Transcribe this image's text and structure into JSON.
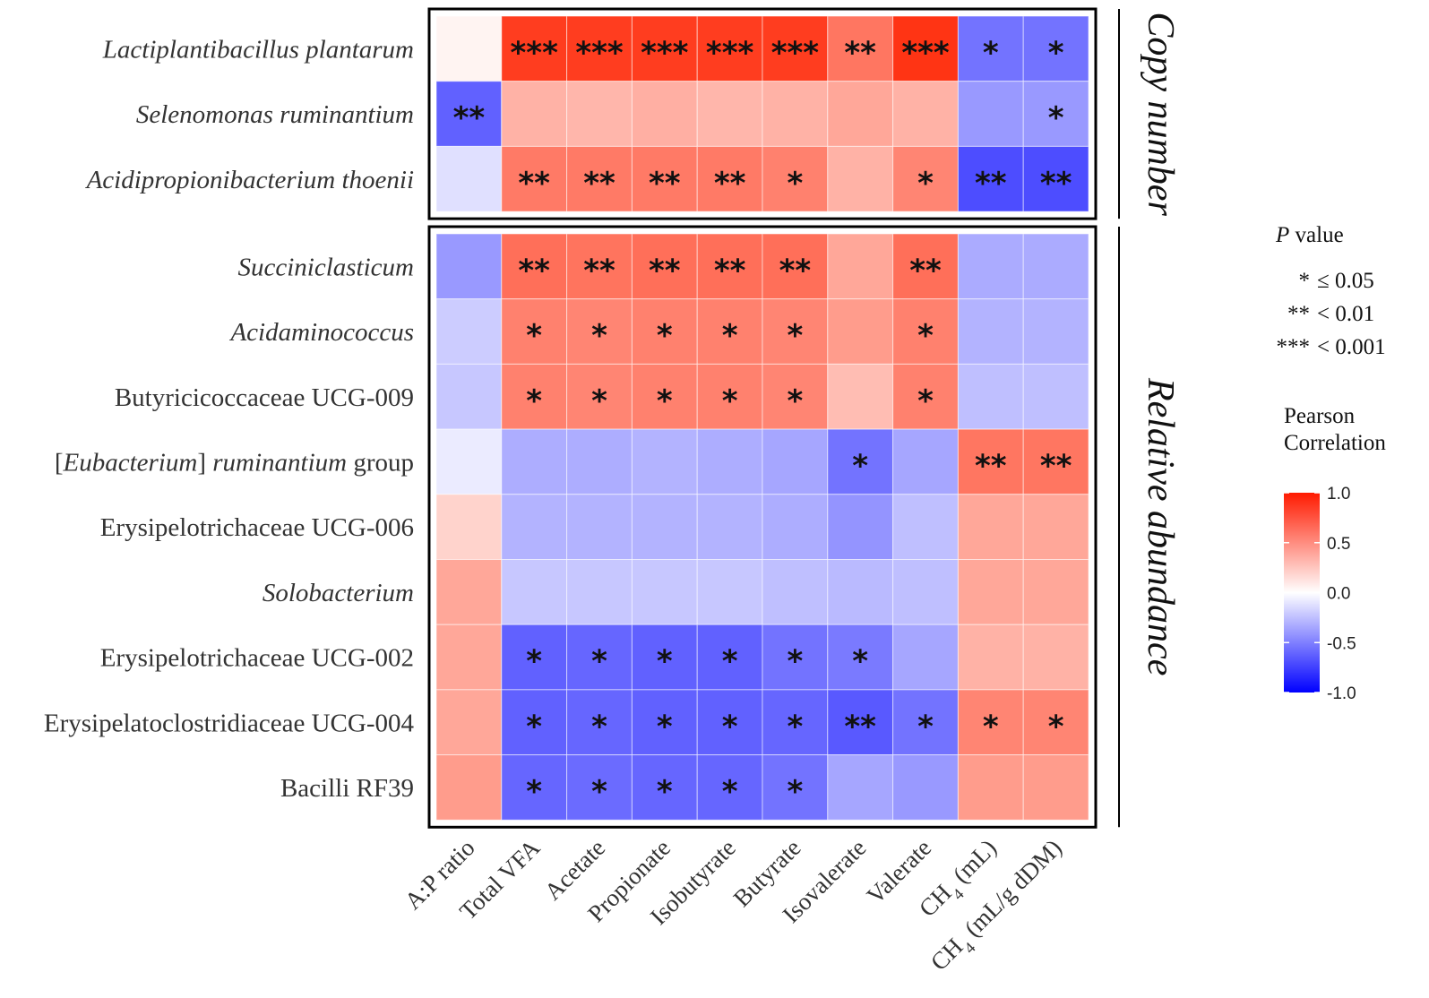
{
  "chart_data": {
    "type": "heatmap",
    "columns": [
      "A:P ratio",
      "Total VFA",
      "Acetate",
      "Propionate",
      "Isobutyrate",
      "Butyrate",
      "Isovalerate",
      "Valerate",
      "CH4 (mL)",
      "CH4 (mL/g dDM)"
    ],
    "column_labels_display": [
      {
        "main": "A:P ratio"
      },
      {
        "main": "Total VFA"
      },
      {
        "main": "Acetate"
      },
      {
        "main": "Propionate"
      },
      {
        "main": "Isobutyrate"
      },
      {
        "main": "Butyrate"
      },
      {
        "main": "Isovalerate"
      },
      {
        "main": "Valerate"
      },
      {
        "pre": "CH",
        "sub": "4",
        "post": " (mL)"
      },
      {
        "pre": "CH",
        "sub": "4",
        "post": " (mL/g dDM)"
      }
    ],
    "groups": [
      {
        "name": "Copy number",
        "rows": [
          {
            "label": [
              {
                "t": "Lactiplantibacillus plantarum",
                "i": true
              }
            ],
            "values": [
              0.05,
              0.88,
              0.88,
              0.88,
              0.88,
              0.88,
              0.62,
              0.92,
              -0.55,
              -0.55
            ],
            "sig": [
              "",
              "***",
              "***",
              "***",
              "***",
              "***",
              "**",
              "***",
              "*",
              "*"
            ]
          },
          {
            "label": [
              {
                "t": "Selenomonas ruminantium",
                "i": true
              }
            ],
            "values": [
              -0.62,
              0.35,
              0.33,
              0.36,
              0.33,
              0.35,
              0.4,
              0.35,
              -0.4,
              -0.4
            ],
            "sig": [
              "**",
              "",
              "",
              "",
              "",
              "",
              "",
              "",
              "",
              "*"
            ]
          },
          {
            "label": [
              {
                "t": "Acidipropionibacterium thoenii",
                "i": true
              }
            ],
            "values": [
              -0.12,
              0.6,
              0.6,
              0.6,
              0.6,
              0.57,
              0.35,
              0.55,
              -0.7,
              -0.7
            ],
            "sig": [
              "",
              "**",
              "**",
              "**",
              "**",
              "*",
              "",
              "*",
              "**",
              "**"
            ]
          }
        ]
      },
      {
        "name": "Relative abundance",
        "rows": [
          {
            "label": [
              {
                "t": "Succiniclasticum",
                "i": true
              }
            ],
            "values": [
              -0.4,
              0.65,
              0.63,
              0.65,
              0.65,
              0.65,
              0.4,
              0.65,
              -0.33,
              -0.33
            ],
            "sig": [
              "",
              "**",
              "**",
              "**",
              "**",
              "**",
              "",
              "**",
              "",
              ""
            ]
          },
          {
            "label": [
              {
                "t": "Acidaminococcus",
                "i": true
              }
            ],
            "values": [
              -0.2,
              0.57,
              0.55,
              0.57,
              0.57,
              0.55,
              0.45,
              0.57,
              -0.3,
              -0.3
            ],
            "sig": [
              "",
              "*",
              "*",
              "*",
              "*",
              "*",
              "",
              "*",
              "",
              ""
            ]
          },
          {
            "label": [
              {
                "t": "Butyricicoccaceae UCG-009",
                "i": false
              }
            ],
            "values": [
              -0.22,
              0.57,
              0.55,
              0.57,
              0.57,
              0.55,
              0.3,
              0.57,
              -0.25,
              -0.25
            ],
            "sig": [
              "",
              "*",
              "*",
              "*",
              "*",
              "*",
              "",
              "*",
              "",
              ""
            ]
          },
          {
            "label": [
              {
                "t": "[",
                "i": false
              },
              {
                "t": "Eubacterium",
                "i": true
              },
              {
                "t": "] ",
                "i": false
              },
              {
                "t": "ruminantium",
                "i": true
              },
              {
                "t": " group",
                "i": false
              }
            ],
            "values": [
              -0.08,
              -0.32,
              -0.32,
              -0.3,
              -0.32,
              -0.35,
              -0.55,
              -0.35,
              0.62,
              0.62
            ],
            "sig": [
              "",
              "",
              "",
              "",
              "",
              "",
              "*",
              "",
              "**",
              "**"
            ]
          },
          {
            "label": [
              {
                "t": "Erysipelotrichaceae UCG-006",
                "i": false
              }
            ],
            "values": [
              0.2,
              -0.3,
              -0.3,
              -0.3,
              -0.3,
              -0.32,
              -0.42,
              -0.25,
              0.4,
              0.4
            ],
            "sig": [
              "",
              "",
              "",
              "",
              "",
              "",
              "",
              "",
              "",
              ""
            ]
          },
          {
            "label": [
              {
                "t": "Solobacterium",
                "i": true
              }
            ],
            "values": [
              0.4,
              -0.22,
              -0.22,
              -0.22,
              -0.22,
              -0.25,
              -0.27,
              -0.25,
              0.4,
              0.4
            ],
            "sig": [
              "",
              "",
              "",
              "",
              "",
              "",
              "",
              "",
              "",
              ""
            ]
          },
          {
            "label": [
              {
                "t": "Erysipelotrichaceae UCG-002",
                "i": false
              }
            ],
            "values": [
              0.4,
              -0.62,
              -0.6,
              -0.62,
              -0.62,
              -0.55,
              -0.52,
              -0.35,
              0.35,
              0.35
            ],
            "sig": [
              "",
              "*",
              "*",
              "*",
              "*",
              "*",
              "*",
              "",
              "",
              ""
            ]
          },
          {
            "label": [
              {
                "t": "Erysipelatoclostridiaceae UCG-004",
                "i": false
              }
            ],
            "values": [
              0.4,
              -0.62,
              -0.6,
              -0.62,
              -0.62,
              -0.6,
              -0.65,
              -0.55,
              0.55,
              0.55
            ],
            "sig": [
              "",
              "*",
              "*",
              "*",
              "*",
              "*",
              "**",
              "*",
              "*",
              "*"
            ]
          },
          {
            "label": [
              {
                "t": "Bacilli RF39",
                "i": false
              }
            ],
            "values": [
              0.45,
              -0.6,
              -0.58,
              -0.6,
              -0.6,
              -0.55,
              -0.35,
              -0.4,
              0.45,
              0.45
            ],
            "sig": [
              "",
              "*",
              "*",
              "*",
              "*",
              "*",
              "",
              "",
              "",
              ""
            ]
          }
        ]
      }
    ],
    "legend": {
      "pvalue_title": {
        "italic": "P",
        "rest": " value"
      },
      "pvalue_items": [
        {
          "stars": "*",
          "text": "≤ 0.05"
        },
        {
          "stars": "**",
          "text": "< 0.01"
        },
        {
          "stars": "***",
          "text": "< 0.001"
        }
      ],
      "colorbar_title": [
        "Pearson",
        "Correlation"
      ],
      "colorbar_ticks": [
        "1.0",
        "0.5",
        "0.0",
        "-0.5",
        "-1.0"
      ],
      "colorbar_values": [
        1.0,
        0.5,
        0.0,
        -0.5,
        -1.0
      ],
      "range": [
        -1.0,
        1.0
      ]
    },
    "colors": {
      "positive": "#ff2200",
      "neutral": "#ffffff",
      "negative": "#0000ff"
    }
  }
}
